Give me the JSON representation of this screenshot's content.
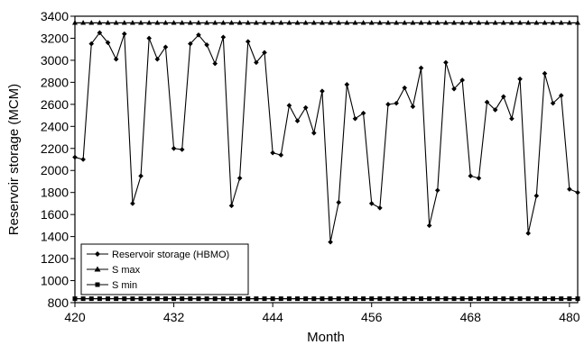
{
  "chart_data": {
    "type": "line",
    "xlabel": "Month",
    "ylabel": "Reservoir storage (MCM)",
    "xlim": [
      420,
      481
    ],
    "ylim": [
      800,
      3400
    ],
    "x_ticks": [
      420,
      432,
      444,
      456,
      468,
      480
    ],
    "y_ticks": [
      800,
      1000,
      1200,
      1400,
      1600,
      1800,
      2000,
      2200,
      2400,
      2600,
      2800,
      3000,
      3200,
      3400
    ],
    "grid": false,
    "legend_position": "bottom-left",
    "series": [
      {
        "name": "Reservoir storage (HBMO)",
        "marker": "diamond",
        "color": "#000000",
        "x": [
          420,
          421,
          422,
          423,
          424,
          425,
          426,
          427,
          428,
          429,
          430,
          431,
          432,
          433,
          434,
          435,
          436,
          437,
          438,
          439,
          440,
          441,
          442,
          443,
          444,
          445,
          446,
          447,
          448,
          449,
          450,
          451,
          452,
          453,
          454,
          455,
          456,
          457,
          458,
          459,
          460,
          461,
          462,
          463,
          464,
          465,
          466,
          467,
          468,
          469,
          470,
          471,
          472,
          473,
          474,
          475,
          476,
          477,
          478,
          479,
          480,
          481
        ],
        "values": [
          2120,
          2100,
          3150,
          3250,
          3160,
          3010,
          3240,
          1700,
          1950,
          3200,
          3010,
          3120,
          2200,
          2190,
          3150,
          3230,
          3140,
          2970,
          3210,
          1680,
          1930,
          3170,
          2980,
          3070,
          2160,
          2140,
          2590,
          2450,
          2570,
          2340,
          2720,
          1350,
          1710,
          2780,
          2470,
          2520,
          1700,
          1660,
          2600,
          2610,
          2750,
          2580,
          2930,
          1500,
          1820,
          2980,
          2740,
          2820,
          1950,
          1930,
          2620,
          2550,
          2670,
          2470,
          2830,
          1430,
          1770,
          2880,
          2610,
          2680,
          1830,
          1800
        ]
      },
      {
        "name": "S max",
        "marker": "triangle",
        "color": "#000000",
        "x_range": [
          420,
          481
        ],
        "value": 3340
      },
      {
        "name": "S min",
        "marker": "square",
        "color": "#000000",
        "x_range": [
          420,
          481
        ],
        "value": 836
      }
    ]
  }
}
